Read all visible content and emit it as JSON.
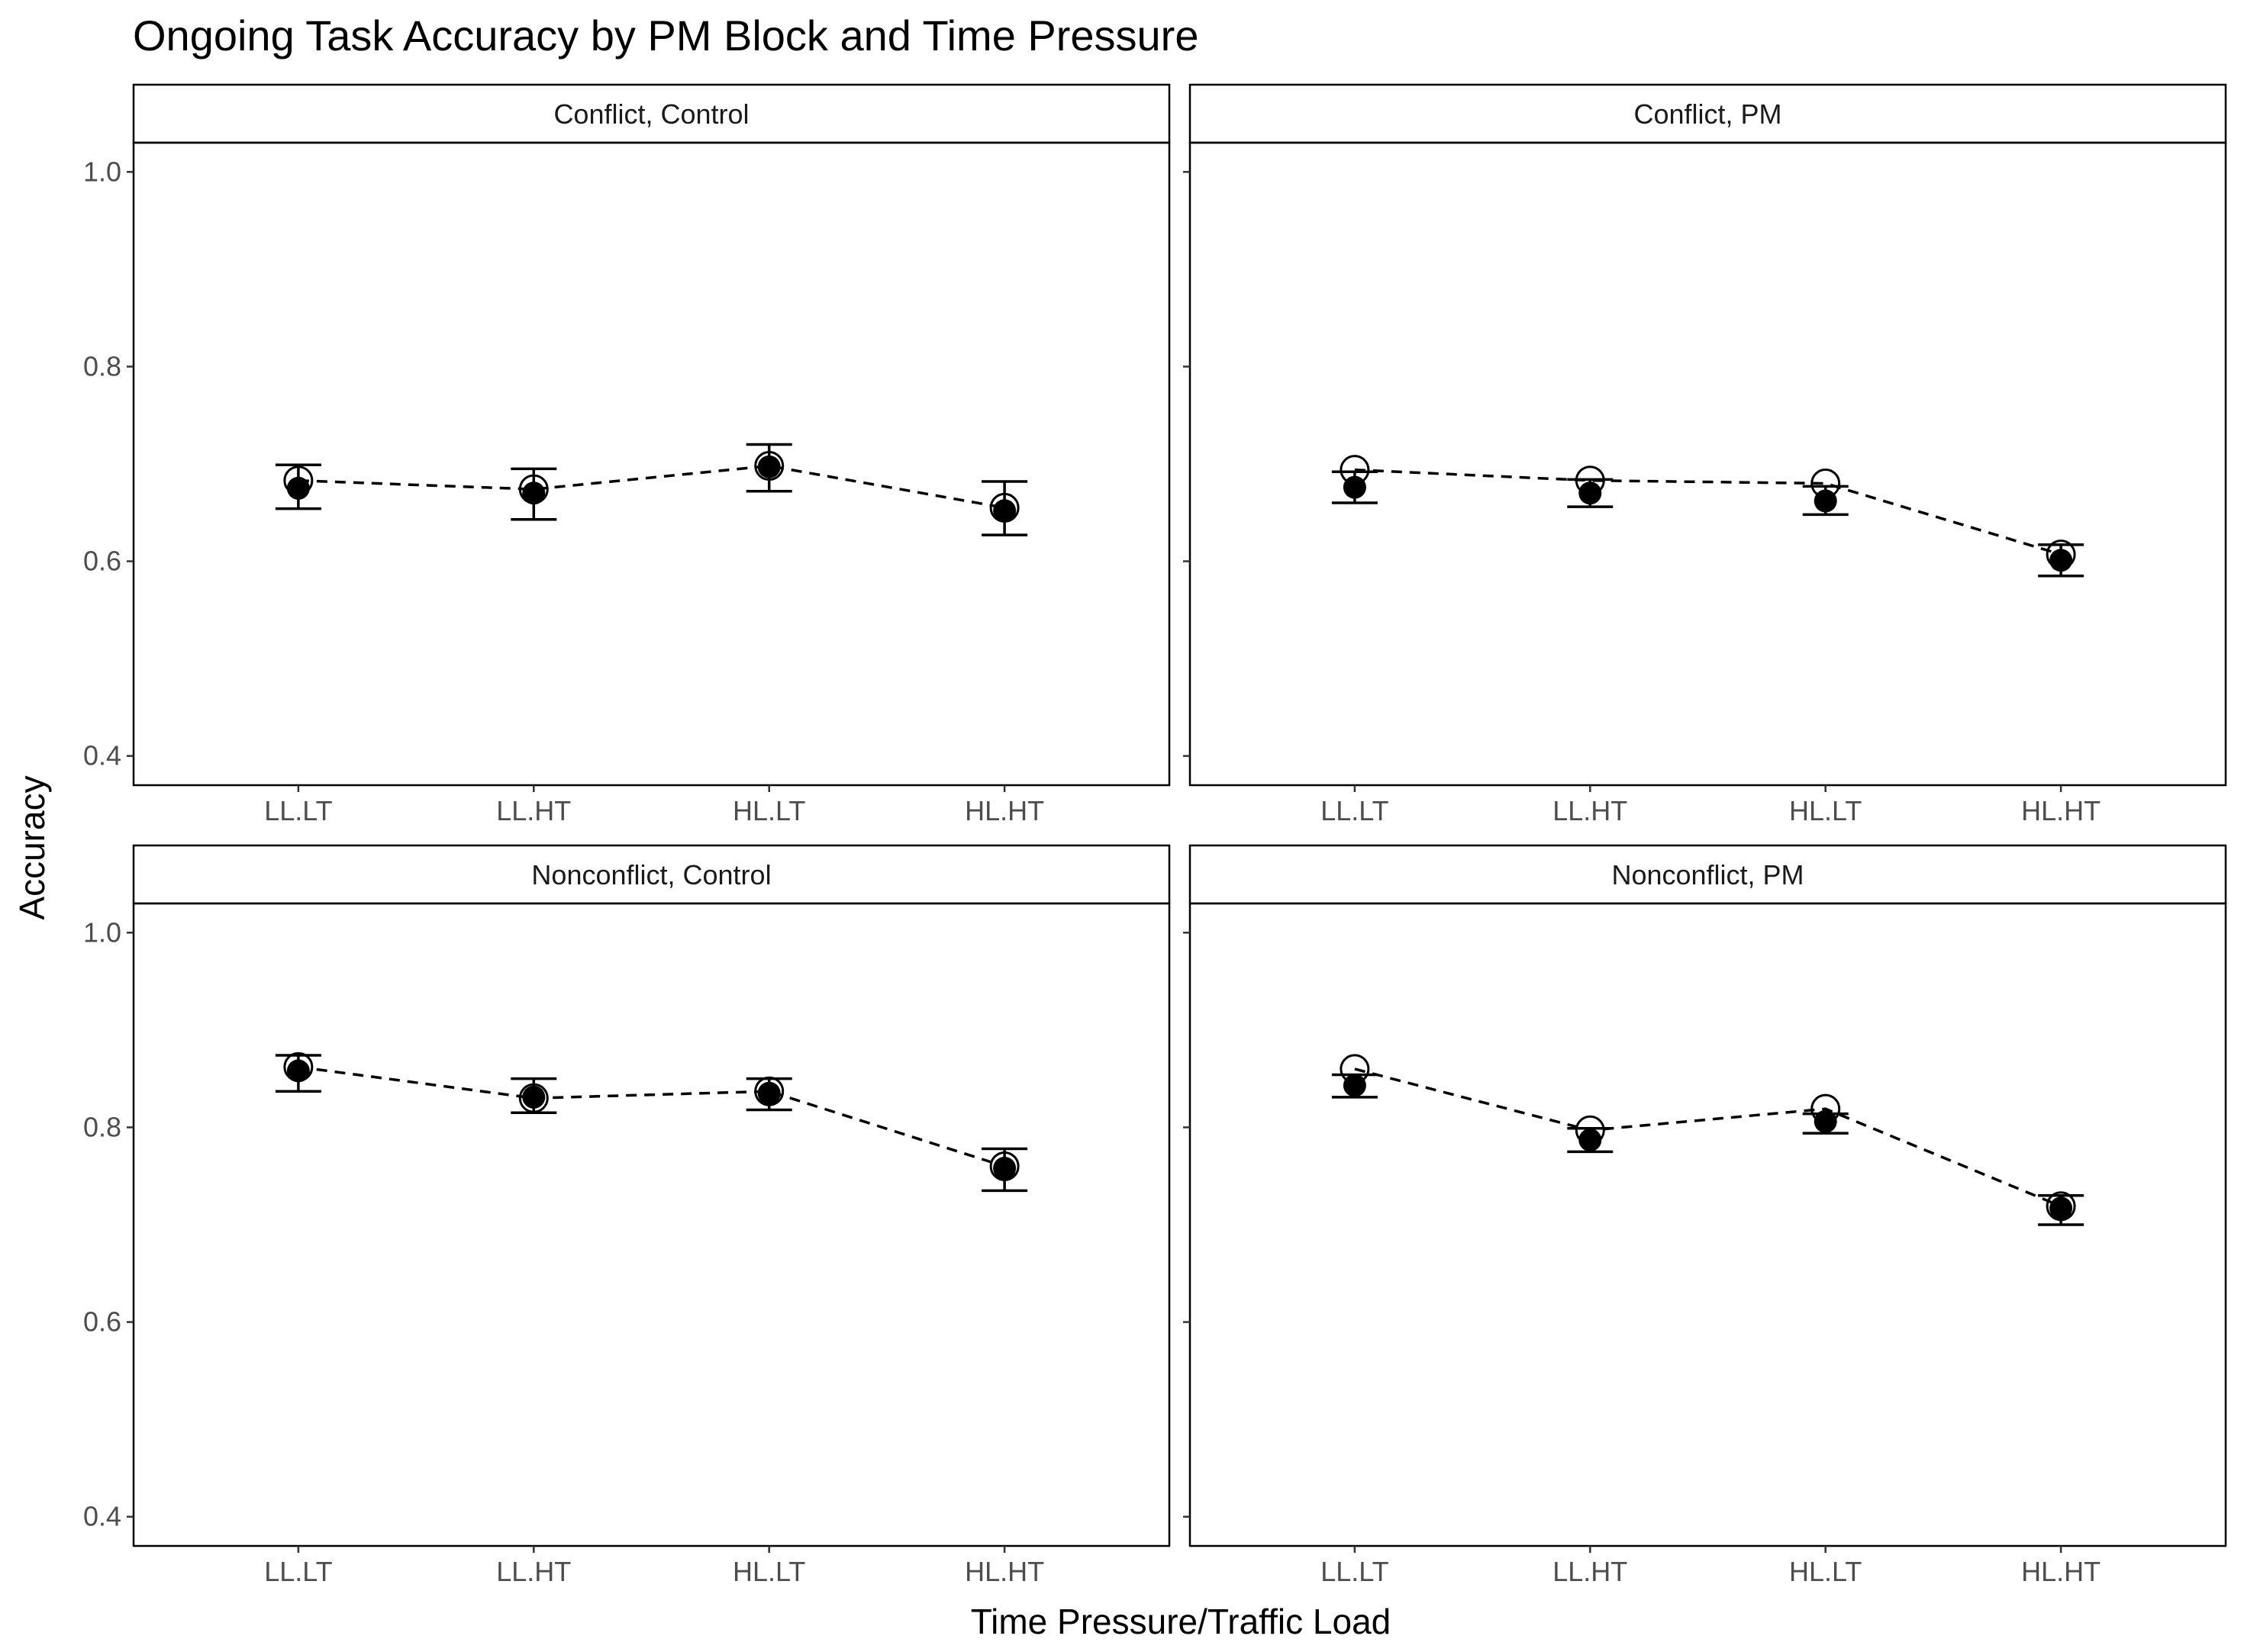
{
  "chart_data": {
    "type": "scatter",
    "title": "Ongoing Task Accuracy by PM Block and Time Pressure",
    "xlabel": "Time Pressure/Traffic Load",
    "ylabel": "Accuracy",
    "categories": [
      "LL.LT",
      "LL.HT",
      "HL.LT",
      "HL.HT"
    ],
    "ylim": [
      0.37,
      1.03
    ],
    "yticks": [
      "0.4",
      "0.6",
      "0.8",
      "1.0"
    ],
    "grid": false,
    "panels": [
      {
        "label": "Conflict, Control",
        "observed": [
          0.683,
          0.674,
          0.698,
          0.655
        ],
        "predicted": [
          0.675,
          0.67,
          0.697,
          0.652
        ],
        "error_low": [
          0.654,
          0.643,
          0.672,
          0.627
        ],
        "error_high": [
          0.699,
          0.695,
          0.72,
          0.682
        ]
      },
      {
        "label": "Conflict, PM",
        "observed": [
          0.694,
          0.683,
          0.68,
          0.607
        ],
        "predicted": [
          0.676,
          0.67,
          0.662,
          0.601
        ],
        "error_low": [
          0.66,
          0.656,
          0.648,
          0.585
        ],
        "error_high": [
          0.692,
          0.684,
          0.677,
          0.617
        ]
      },
      {
        "label": "Nonconflict, Control",
        "observed": [
          0.862,
          0.83,
          0.837,
          0.76
        ],
        "predicted": [
          0.858,
          0.831,
          0.835,
          0.758
        ],
        "error_low": [
          0.837,
          0.815,
          0.818,
          0.735
        ],
        "error_high": [
          0.874,
          0.85,
          0.85,
          0.778
        ]
      },
      {
        "label": "Nonconflict, PM",
        "observed": [
          0.86,
          0.797,
          0.819,
          0.719
        ],
        "predicted": [
          0.843,
          0.787,
          0.806,
          0.717
        ],
        "error_low": [
          0.831,
          0.775,
          0.794,
          0.7
        ],
        "error_high": [
          0.854,
          0.799,
          0.814,
          0.73
        ]
      }
    ]
  }
}
